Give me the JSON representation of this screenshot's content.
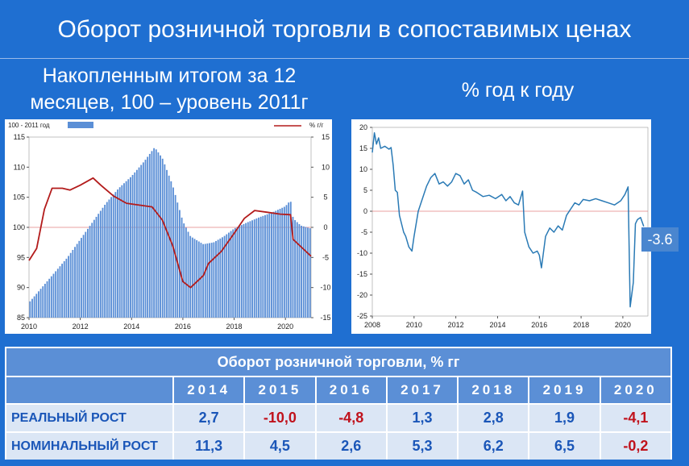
{
  "title": "Оборот розничной торговли в сопоставимых ценах",
  "left_subtitle_line1": "Накопленным итогом за 12",
  "left_subtitle_line2": "месяцев, 100 – уровень 2011г",
  "right_subtitle": "% год к году",
  "callout_value": "-3.6",
  "colors": {
    "bar": "#5b8fd6",
    "red_line": "#b31b1b",
    "blue_line": "#2a7ab5",
    "ref_line": "#e08080"
  },
  "chart_data": [
    {
      "type": "bar",
      "legend": {
        "bar_label": "100 - 2011 год",
        "line_label": "%  г/г"
      },
      "x_ticks": [
        "2010",
        "2012",
        "2014",
        "2016",
        "2018",
        "2020"
      ],
      "y_left_ticks": [
        "85",
        "90",
        "95",
        "100",
        "105",
        "110",
        "115"
      ],
      "y_right_ticks": [
        "-15",
        "-10",
        "-5",
        "0",
        "5",
        "10",
        "15"
      ],
      "ylim_left": [
        85,
        115
      ],
      "ylim_right": [
        -15,
        15
      ],
      "xlim": [
        2010,
        2021
      ],
      "bar_index_points": [
        [
          2010.0,
          87.5
        ],
        [
          2010.5,
          90
        ],
        [
          2011.0,
          92.5
        ],
        [
          2011.5,
          95
        ],
        [
          2012.0,
          98
        ],
        [
          2012.5,
          101
        ],
        [
          2013.0,
          104
        ],
        [
          2013.5,
          106.5
        ],
        [
          2014.0,
          108.5
        ],
        [
          2014.5,
          111
        ],
        [
          2014.9,
          113.3
        ],
        [
          2015.2,
          111.5
        ],
        [
          2015.6,
          107
        ],
        [
          2016.0,
          101
        ],
        [
          2016.3,
          98.5
        ],
        [
          2016.8,
          97.2
        ],
        [
          2017.2,
          97.5
        ],
        [
          2017.6,
          98.5
        ],
        [
          2018.0,
          99.8
        ],
        [
          2018.5,
          100.8
        ],
        [
          2019.0,
          101.7
        ],
        [
          2019.5,
          102.5
        ],
        [
          2020.0,
          103.5
        ],
        [
          2020.2,
          104.5
        ],
        [
          2020.3,
          101.5
        ],
        [
          2020.6,
          100.3
        ],
        [
          2021.0,
          99.8
        ]
      ],
      "line_yoy_points": [
        [
          2010.0,
          -5.5
        ],
        [
          2010.3,
          -3.5
        ],
        [
          2010.6,
          3
        ],
        [
          2010.9,
          6.5
        ],
        [
          2011.3,
          6.5
        ],
        [
          2011.6,
          6.2
        ],
        [
          2012.0,
          7
        ],
        [
          2012.5,
          8.2
        ],
        [
          2012.8,
          7
        ],
        [
          2013.3,
          5.2
        ],
        [
          2013.8,
          4
        ],
        [
          2014.3,
          3.7
        ],
        [
          2014.8,
          3.4
        ],
        [
          2015.2,
          1.2
        ],
        [
          2015.6,
          -3
        ],
        [
          2016.0,
          -9
        ],
        [
          2016.3,
          -10
        ],
        [
          2016.8,
          -8
        ],
        [
          2017.0,
          -6
        ],
        [
          2017.5,
          -4
        ],
        [
          2018.0,
          -1
        ],
        [
          2018.4,
          1.5
        ],
        [
          2018.8,
          2.8
        ],
        [
          2019.3,
          2.5
        ],
        [
          2019.8,
          2.2
        ],
        [
          2020.2,
          2.1
        ],
        [
          2020.3,
          -2
        ],
        [
          2020.6,
          -3.2
        ],
        [
          2021.0,
          -4.8
        ]
      ]
    },
    {
      "type": "line",
      "x_ticks": [
        "2008",
        "2010",
        "2012",
        "2014",
        "2016",
        "2018",
        "2020"
      ],
      "y_ticks": [
        "20",
        "15",
        "10",
        "5",
        "0",
        "-5",
        "-10",
        "-15",
        "-20",
        "-25"
      ],
      "ylim": [
        -25,
        20
      ],
      "xlim": [
        2008,
        2021.2
      ],
      "series_points": [
        [
          2008.0,
          14
        ],
        [
          2008.1,
          18.7
        ],
        [
          2008.2,
          16
        ],
        [
          2008.3,
          17.5
        ],
        [
          2008.4,
          15
        ],
        [
          2008.6,
          15.5
        ],
        [
          2008.8,
          14.8
        ],
        [
          2008.9,
          15.2
        ],
        [
          2009.0,
          11
        ],
        [
          2009.1,
          5
        ],
        [
          2009.2,
          4.5
        ],
        [
          2009.3,
          -1
        ],
        [
          2009.5,
          -5
        ],
        [
          2009.6,
          -6
        ],
        [
          2009.75,
          -8.5
        ],
        [
          2009.9,
          -9.5
        ],
        [
          2010.0,
          -6
        ],
        [
          2010.2,
          0
        ],
        [
          2010.4,
          3
        ],
        [
          2010.6,
          6
        ],
        [
          2010.8,
          8
        ],
        [
          2011.0,
          9
        ],
        [
          2011.2,
          6.5
        ],
        [
          2011.4,
          7
        ],
        [
          2011.6,
          6
        ],
        [
          2011.8,
          7
        ],
        [
          2012.0,
          9
        ],
        [
          2012.2,
          8.5
        ],
        [
          2012.4,
          6.5
        ],
        [
          2012.6,
          7.5
        ],
        [
          2012.8,
          5
        ],
        [
          2013.0,
          4.5
        ],
        [
          2013.3,
          3.5
        ],
        [
          2013.6,
          3.8
        ],
        [
          2013.9,
          3
        ],
        [
          2014.2,
          4
        ],
        [
          2014.4,
          2.5
        ],
        [
          2014.6,
          3.5
        ],
        [
          2014.8,
          2
        ],
        [
          2015.0,
          1.5
        ],
        [
          2015.2,
          4.8
        ],
        [
          2015.3,
          -5
        ],
        [
          2015.5,
          -8.5
        ],
        [
          2015.7,
          -10
        ],
        [
          2015.9,
          -9.5
        ],
        [
          2016.0,
          -10.5
        ],
        [
          2016.1,
          -13.5
        ],
        [
          2016.3,
          -6
        ],
        [
          2016.5,
          -4
        ],
        [
          2016.7,
          -5
        ],
        [
          2016.9,
          -3.5
        ],
        [
          2017.1,
          -4.5
        ],
        [
          2017.3,
          -1
        ],
        [
          2017.5,
          0.5
        ],
        [
          2017.7,
          2
        ],
        [
          2017.9,
          1.5
        ],
        [
          2018.1,
          2.8
        ],
        [
          2018.4,
          2.5
        ],
        [
          2018.7,
          3
        ],
        [
          2019.0,
          2.5
        ],
        [
          2019.3,
          2
        ],
        [
          2019.6,
          1.5
        ],
        [
          2019.9,
          2.5
        ],
        [
          2020.1,
          4
        ],
        [
          2020.25,
          5.8
        ],
        [
          2020.35,
          -22.8
        ],
        [
          2020.5,
          -17
        ],
        [
          2020.6,
          -3
        ],
        [
          2020.7,
          -2
        ],
        [
          2020.85,
          -1.5
        ],
        [
          2021.0,
          -3.6
        ]
      ]
    }
  ],
  "table": {
    "title": "Оборот розничной торговли, % гг",
    "years": [
      "2014",
      "2015",
      "2016",
      "2017",
      "2018",
      "2019",
      "2020"
    ],
    "rows": [
      {
        "label": "РЕАЛЬНЫЙ РОСТ",
        "values": [
          "2,7",
          "-10,0",
          "-4,8",
          "1,3",
          "2,8",
          "1,9",
          "-4,1"
        ]
      },
      {
        "label": "НОМИНАЛЬНЫЙ РОСТ",
        "values": [
          "11,3",
          "4,5",
          "2,6",
          "5,3",
          "6,2",
          "6,5",
          "-0,2"
        ]
      }
    ]
  }
}
